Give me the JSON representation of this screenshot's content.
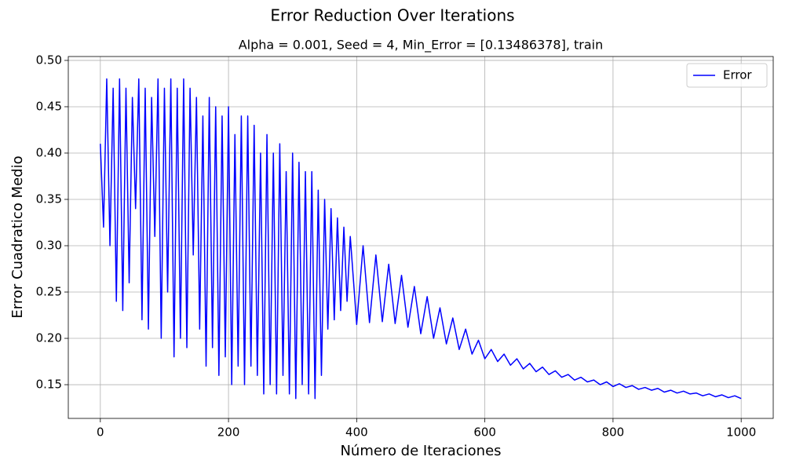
{
  "chart_data": {
    "type": "line",
    "title": "Error Reduction Over Iterations",
    "subtitle": "Alpha = 0.001, Seed = 4, Min_Error = [0.13486378], train",
    "x_label": "Número de Iteraciones",
    "y_label": "Error Cuadratico Medio",
    "x": [
      0,
      5,
      10,
      15,
      20,
      25,
      30,
      35,
      40,
      45,
      50,
      55,
      60,
      65,
      70,
      75,
      80,
      85,
      90,
      95,
      100,
      105,
      110,
      115,
      120,
      125,
      130,
      135,
      140,
      145,
      150,
      155,
      160,
      165,
      170,
      175,
      180,
      185,
      190,
      195,
      200,
      205,
      210,
      215,
      220,
      225,
      230,
      235,
      240,
      245,
      250,
      255,
      260,
      265,
      270,
      275,
      280,
      285,
      290,
      295,
      300,
      305,
      310,
      315,
      320,
      325,
      330,
      335,
      340,
      345,
      350,
      355,
      360,
      365,
      370,
      375,
      380,
      385,
      390,
      400,
      410,
      420,
      430,
      440,
      450,
      460,
      470,
      480,
      490,
      500,
      510,
      520,
      530,
      540,
      550,
      560,
      570,
      580,
      590,
      600,
      610,
      620,
      630,
      640,
      650,
      660,
      670,
      680,
      690,
      700,
      710,
      720,
      730,
      740,
      750,
      760,
      770,
      780,
      790,
      800,
      810,
      820,
      830,
      840,
      850,
      860,
      870,
      880,
      890,
      900,
      910,
      920,
      930,
      940,
      950,
      960,
      970,
      980,
      990,
      1000
    ],
    "series": [
      {
        "name": "Error",
        "color": "#0000ff",
        "values": [
          0.41,
          0.32,
          0.48,
          0.3,
          0.47,
          0.24,
          0.48,
          0.23,
          0.47,
          0.26,
          0.46,
          0.34,
          0.48,
          0.22,
          0.47,
          0.21,
          0.46,
          0.31,
          0.48,
          0.2,
          0.47,
          0.25,
          0.48,
          0.18,
          0.47,
          0.2,
          0.48,
          0.19,
          0.47,
          0.29,
          0.46,
          0.21,
          0.44,
          0.17,
          0.46,
          0.19,
          0.45,
          0.16,
          0.44,
          0.18,
          0.45,
          0.15,
          0.42,
          0.17,
          0.44,
          0.15,
          0.44,
          0.17,
          0.43,
          0.16,
          0.4,
          0.14,
          0.42,
          0.15,
          0.4,
          0.14,
          0.41,
          0.16,
          0.38,
          0.14,
          0.4,
          0.135,
          0.39,
          0.15,
          0.38,
          0.14,
          0.38,
          0.135,
          0.36,
          0.16,
          0.35,
          0.21,
          0.34,
          0.22,
          0.33,
          0.23,
          0.32,
          0.24,
          0.31,
          0.215,
          0.3,
          0.217,
          0.29,
          0.218,
          0.28,
          0.216,
          0.268,
          0.212,
          0.256,
          0.205,
          0.245,
          0.2,
          0.233,
          0.194,
          0.222,
          0.188,
          0.21,
          0.183,
          0.198,
          0.178,
          0.188,
          0.175,
          0.183,
          0.171,
          0.178,
          0.167,
          0.173,
          0.164,
          0.169,
          0.161,
          0.165,
          0.158,
          0.161,
          0.155,
          0.158,
          0.153,
          0.155,
          0.15,
          0.153,
          0.148,
          0.151,
          0.147,
          0.149,
          0.145,
          0.147,
          0.144,
          0.146,
          0.142,
          0.144,
          0.141,
          0.143,
          0.14,
          0.141,
          0.138,
          0.14,
          0.137,
          0.139,
          0.136,
          0.138,
          0.135
        ]
      }
    ],
    "xlim": [
      -50,
      1050
    ],
    "ylim": [
      0.1136,
      0.5042
    ],
    "xticks": [
      0,
      200,
      400,
      600,
      800,
      1000
    ],
    "yticks": [
      0.15,
      {
        "value": 0.2,
        "label": "0.20"
      },
      0.25,
      {
        "value": 0.3,
        "label": "0.30"
      },
      0.35,
      {
        "value": 0.4,
        "label": "0.40"
      },
      0.45,
      {
        "value": 0.5,
        "label": "0.50"
      }
    ],
    "grid": true,
    "legend": "upper right"
  }
}
